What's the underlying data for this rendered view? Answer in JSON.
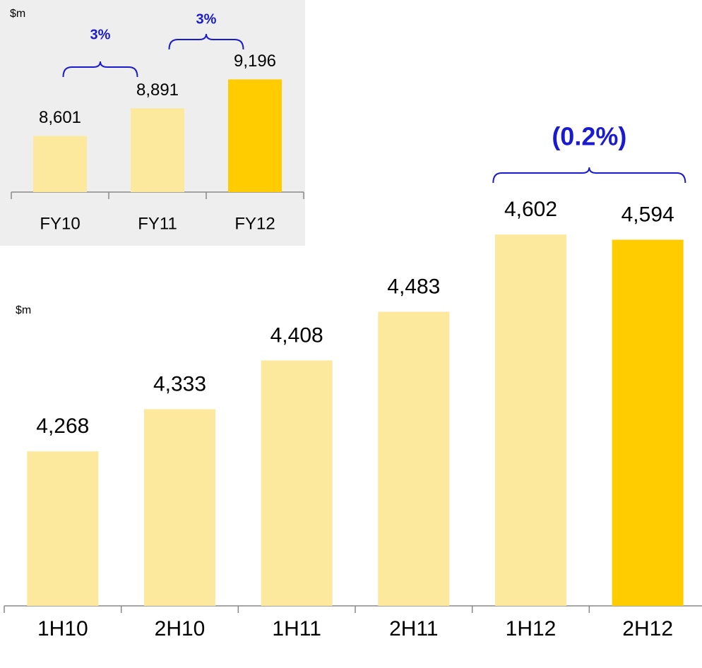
{
  "chart_data": [
    {
      "type": "bar",
      "unit_label": "$m",
      "categories": [
        "1H10",
        "2H10",
        "1H11",
        "2H11",
        "1H12",
        "2H12"
      ],
      "values": [
        4268,
        4333,
        4408,
        4483,
        4602,
        4594
      ],
      "value_labels": [
        "4,268",
        "4,333",
        "4,408",
        "4,483",
        "4,602",
        "4,594"
      ],
      "colors": [
        "#fde99d",
        "#fde99d",
        "#fde99d",
        "#fde99d",
        "#fde99d",
        "#ffcc00"
      ],
      "ylim": [
        4030,
        4650
      ],
      "annotations": [
        "(0.2%)"
      ]
    },
    {
      "type": "bar",
      "unit_label": "$m",
      "categories": [
        "FY10",
        "FY11",
        "FY12"
      ],
      "values": [
        8601,
        8891,
        9196
      ],
      "value_labels": [
        "8,601",
        "8,891",
        "9,196"
      ],
      "colors": [
        "#fde99d",
        "#fde99d",
        "#ffcc00"
      ],
      "ylim": [
        8010,
        9400
      ],
      "annotations": [
        "3%",
        "3%"
      ]
    }
  ]
}
